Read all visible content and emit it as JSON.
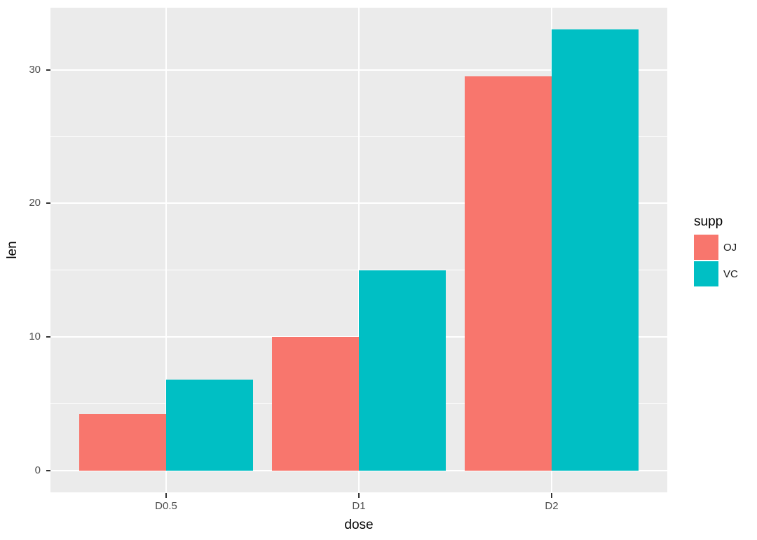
{
  "chart_data": {
    "type": "bar",
    "title": "",
    "xlabel": "dose",
    "ylabel": "len",
    "categories": [
      "D0.5",
      "D1",
      "D2"
    ],
    "series": [
      {
        "name": "OJ",
        "color": "#F8766D",
        "values": [
          4.2,
          10,
          29.5
        ]
      },
      {
        "name": "VC",
        "color": "#00BFC4",
        "values": [
          6.8,
          15,
          33
        ]
      }
    ],
    "y_ticks": [
      0,
      10,
      20,
      30
    ],
    "y_minor_ticks": [
      5,
      15,
      25
    ],
    "ylim": [
      -1.65,
      34.65
    ],
    "bar_layout": "dodged",
    "grid": "on",
    "legend_title": "supp",
    "legend_position": "right",
    "panel_background": "#EBEBEB",
    "gridline_color": "#FFFFFF",
    "axis_text_color": "#4D4D4D",
    "axis_title_color": "#000000",
    "tick_mark_color": "#333333"
  }
}
